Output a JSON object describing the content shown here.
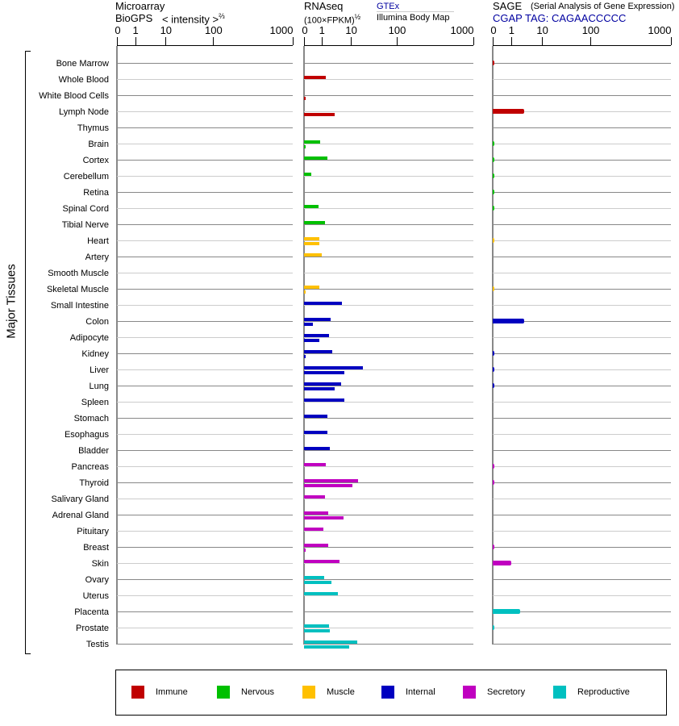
{
  "panels": {
    "microarray": {
      "title": "Microarray",
      "subtitle": "BioGPS",
      "unit": "< intensity >",
      "exp": "⅔"
    },
    "rnaseq": {
      "title": "RNAseq",
      "unit": "(100×FPKM)",
      "exp": "½",
      "source_top": "GTEx",
      "source_bottom": "Illumina Body Map"
    },
    "sage": {
      "title": "SAGE",
      "subtitle": "(Serial Analysis of Gene Expression)",
      "tag": "CGAP TAG: CAGAACCCCC"
    }
  },
  "ticks": [
    "0",
    "1",
    "10",
    "100",
    "1000"
  ],
  "y_group_label": "Major Tissues",
  "colors": {
    "Immune": "#c00000",
    "Nervous": "#00c000",
    "Muscle": "#ffc000",
    "Internal": "#0000c0",
    "Secretory": "#c000c0",
    "Reproductive": "#00c0c0"
  },
  "legend": [
    "Immune",
    "Nervous",
    "Muscle",
    "Internal",
    "Secretory",
    "Reproductive"
  ],
  "chart_data": {
    "type": "bar",
    "note": "bar levels are fraction of axis (0 to 1000 tick)",
    "tick_values": [
      0,
      1,
      10,
      100,
      1000
    ],
    "tissues": [
      {
        "name": "Bone Marrow",
        "group": "Immune",
        "gtex": 0,
        "illumina": 0,
        "sage": 0.01
      },
      {
        "name": "Whole Blood",
        "group": "Immune",
        "gtex": 0.127,
        "illumina": 0,
        "sage": 0
      },
      {
        "name": "White Blood Cells",
        "group": "Immune",
        "gtex": 0,
        "illumina": 0.008,
        "sage": 0
      },
      {
        "name": "Lymph Node",
        "group": "Immune",
        "gtex": 0,
        "illumina": 0.18,
        "sage": 0.177
      },
      {
        "name": "Thymus",
        "group": "Immune",
        "gtex": 0,
        "illumina": 0,
        "sage": 0
      },
      {
        "name": "Brain",
        "group": "Nervous",
        "gtex": 0.094,
        "illumina": 0.008,
        "sage": 0.01
      },
      {
        "name": "Cortex",
        "group": "Nervous",
        "gtex": 0.137,
        "illumina": 0,
        "sage": 0.01
      },
      {
        "name": "Cerebellum",
        "group": "Nervous",
        "gtex": 0.041,
        "illumina": 0,
        "sage": 0.01
      },
      {
        "name": "Retina",
        "group": "Nervous",
        "gtex": 0,
        "illumina": 0,
        "sage": 0.01
      },
      {
        "name": "Spinal Cord",
        "group": "Nervous",
        "gtex": 0.084,
        "illumina": 0,
        "sage": 0.01
      },
      {
        "name": "Tibial Nerve",
        "group": "Nervous",
        "gtex": 0.122,
        "illumina": 0,
        "sage": 0
      },
      {
        "name": "Heart",
        "group": "Muscle",
        "gtex": 0.089,
        "illumina": 0.089,
        "sage": 0.01
      },
      {
        "name": "Artery",
        "group": "Muscle",
        "gtex": 0.103,
        "illumina": 0,
        "sage": 0
      },
      {
        "name": "Smooth Muscle",
        "group": "Muscle",
        "gtex": 0,
        "illumina": 0,
        "sage": 0
      },
      {
        "name": "Skeletal Muscle",
        "group": "Muscle",
        "gtex": 0.089,
        "illumina": 0.008,
        "sage": 0.01
      },
      {
        "name": "Small Intestine",
        "group": "Internal",
        "gtex": 0.222,
        "illumina": 0,
        "sage": 0
      },
      {
        "name": "Colon",
        "group": "Internal",
        "gtex": 0.156,
        "illumina": 0.051,
        "sage": 0.177
      },
      {
        "name": "Adipocyte",
        "group": "Internal",
        "gtex": 0.146,
        "illumina": 0.089,
        "sage": 0
      },
      {
        "name": "Kidney",
        "group": "Internal",
        "gtex": 0.165,
        "illumina": 0.008,
        "sage": 0.01
      },
      {
        "name": "Liver",
        "group": "Internal",
        "gtex": 0.346,
        "illumina": 0.237,
        "sage": 0.01
      },
      {
        "name": "Lung",
        "group": "Internal",
        "gtex": 0.218,
        "illumina": 0.18,
        "sage": 0.01
      },
      {
        "name": "Spleen",
        "group": "Internal",
        "gtex": 0.237,
        "illumina": 0,
        "sage": 0
      },
      {
        "name": "Stomach",
        "group": "Internal",
        "gtex": 0.137,
        "illumina": 0,
        "sage": 0
      },
      {
        "name": "Esophagus",
        "group": "Internal",
        "gtex": 0.137,
        "illumina": 0,
        "sage": 0
      },
      {
        "name": "Bladder",
        "group": "Internal",
        "gtex": 0.151,
        "illumina": 0,
        "sage": 0
      },
      {
        "name": "Pancreas",
        "group": "Secretory",
        "gtex": 0.127,
        "illumina": 0,
        "sage": 0.01
      },
      {
        "name": "Thyroid",
        "group": "Secretory",
        "gtex": 0.317,
        "illumina": 0.284,
        "sage": 0.01
      },
      {
        "name": "Salivary Gland",
        "group": "Secretory",
        "gtex": 0.122,
        "illumina": 0,
        "sage": 0
      },
      {
        "name": "Adrenal Gland",
        "group": "Secretory",
        "gtex": 0.141,
        "illumina": 0.232,
        "sage": 0
      },
      {
        "name": "Pituitary",
        "group": "Secretory",
        "gtex": 0.113,
        "illumina": 0,
        "sage": 0
      },
      {
        "name": "Breast",
        "group": "Secretory",
        "gtex": 0.141,
        "illumina": 0.008,
        "sage": 0.01
      },
      {
        "name": "Skin",
        "group": "Secretory",
        "gtex": 0.208,
        "illumina": 0,
        "sage": 0.105
      },
      {
        "name": "Ovary",
        "group": "Reproductive",
        "gtex": 0.118,
        "illumina": 0.16,
        "sage": 0
      },
      {
        "name": "Uterus",
        "group": "Reproductive",
        "gtex": 0.198,
        "illumina": 0,
        "sage": 0
      },
      {
        "name": "Placenta",
        "group": "Reproductive",
        "gtex": 0,
        "illumina": 0,
        "sage": 0.155
      },
      {
        "name": "Prostate",
        "group": "Reproductive",
        "gtex": 0.146,
        "illumina": 0.151,
        "sage": 0.01
      },
      {
        "name": "Testis",
        "group": "Reproductive",
        "gtex": 0.313,
        "illumina": 0.265,
        "sage": 0
      }
    ]
  }
}
